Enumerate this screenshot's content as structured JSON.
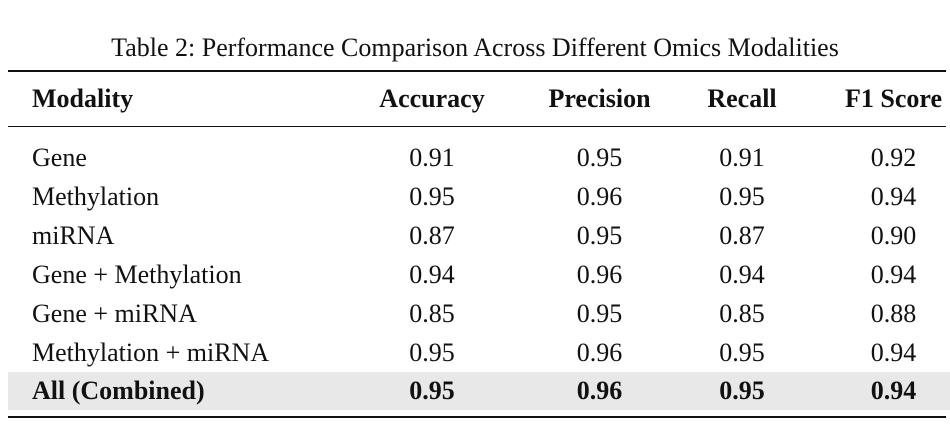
{
  "caption": "Table 2: Performance Comparison Across Different Omics Modalities",
  "columns": [
    "Modality",
    "Accuracy",
    "Precision",
    "Recall",
    "F1 Score"
  ],
  "rows": [
    {
      "modality": "Gene",
      "accuracy": "0.91",
      "precision": "0.95",
      "recall": "0.91",
      "f1": "0.92"
    },
    {
      "modality": "Methylation",
      "accuracy": "0.95",
      "precision": "0.96",
      "recall": "0.95",
      "f1": "0.94"
    },
    {
      "modality": "miRNA",
      "accuracy": "0.87",
      "precision": "0.95",
      "recall": "0.87",
      "f1": "0.90"
    },
    {
      "modality": "Gene + Methylation",
      "accuracy": "0.94",
      "precision": "0.96",
      "recall": "0.94",
      "f1": "0.94"
    },
    {
      "modality": "Gene + miRNA",
      "accuracy": "0.85",
      "precision": "0.95",
      "recall": "0.85",
      "f1": "0.88"
    },
    {
      "modality": "Methylation + miRNA",
      "accuracy": "0.95",
      "precision": "0.96",
      "recall": "0.95",
      "f1": "0.94"
    },
    {
      "modality": "All (Combined)",
      "accuracy": "0.95",
      "precision": "0.96",
      "recall": "0.95",
      "f1": "0.94"
    }
  ],
  "highlight_color": "#e8e8e8"
}
